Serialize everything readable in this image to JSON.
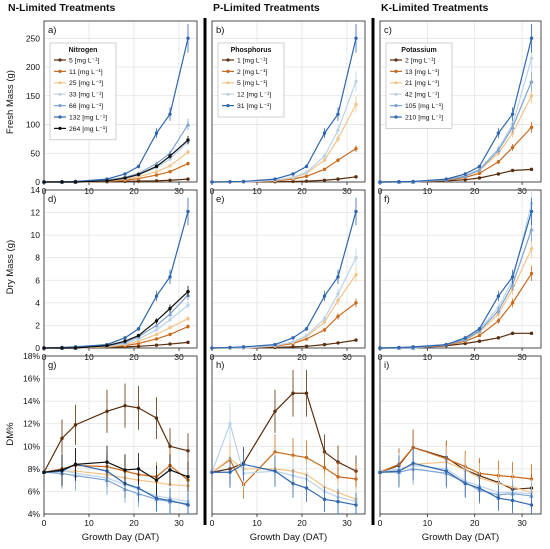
{
  "columns": [
    "N-Limited Treatments",
    "P-Limited Treatments",
    "K-Limited Treatments"
  ],
  "panel_labels": [
    "a)",
    "b)",
    "c)",
    "d)",
    "e)",
    "f)",
    "g)",
    "h)",
    "i)"
  ],
  "row_ylabels": [
    "Fresh Mass (g)",
    "Dry Mass (g)",
    "DM%"
  ],
  "xlabel": "Growth Day (DAT)",
  "colors": [
    "#5a2d0c",
    "#c86a1e",
    "#f2c48a",
    "#bcd3ea",
    "#7ea3cf",
    "#2f66ad",
    "#111111"
  ],
  "chart_data": [
    {
      "type": "line",
      "panel": "a)",
      "column": "N-Limited Treatments",
      "ylabel": "Fresh Mass (g)",
      "xlabel": "",
      "ylim": [
        0,
        280
      ],
      "yticks": [
        0,
        50,
        100,
        150,
        200,
        250
      ],
      "xlim": [
        0,
        34
      ],
      "xticks": [
        0,
        10,
        20,
        30
      ],
      "legend_title": "Nitrogen",
      "legend_position": "top-left",
      "x": [
        0,
        4,
        7,
        14,
        18,
        21,
        25,
        28,
        32
      ],
      "series": [
        {
          "name": "5 [mg L⁻¹]",
          "values": [
            0,
            0,
            0,
            0.5,
            1,
            1.5,
            2,
            3,
            5
          ]
        },
        {
          "name": "11 [mg L⁻¹]",
          "values": [
            0,
            0,
            0,
            1,
            3,
            6,
            12,
            18,
            32
          ]
        },
        {
          "name": "25 [mg L⁻¹]",
          "values": [
            0,
            0,
            0,
            2,
            5,
            9,
            18,
            28,
            52
          ]
        },
        {
          "name": "33 [mg L⁻¹]",
          "values": [
            0,
            0,
            0,
            2,
            6,
            12,
            25,
            40,
            70
          ]
        },
        {
          "name": "66 [mg L⁻¹]",
          "values": [
            0,
            0,
            0,
            3,
            8,
            15,
            32,
            50,
            100
          ]
        },
        {
          "name": "132 [mg L⁻¹]",
          "values": [
            0,
            0.5,
            1,
            5,
            14,
            27,
            85,
            118,
            250
          ]
        },
        {
          "name": "264 [mg L⁻¹]",
          "values": [
            0,
            0,
            0,
            2,
            7,
            13,
            27,
            45,
            73
          ]
        }
      ]
    },
    {
      "type": "line",
      "panel": "b)",
      "column": "P-Limited Treatments",
      "ylabel": "",
      "xlabel": "",
      "ylim": [
        0,
        280
      ],
      "yticks": [
        0,
        50,
        100,
        150,
        200,
        250
      ],
      "xlim": [
        0,
        34
      ],
      "xticks": [
        0,
        10,
        20,
        30
      ],
      "legend_title": "Phosphorus",
      "legend_position": "top-left",
      "x": [
        0,
        4,
        7,
        14,
        18,
        21,
        25,
        28,
        32
      ],
      "series": [
        {
          "name": "1 [mg L⁻¹]",
          "values": [
            0,
            0,
            0,
            0.5,
            1,
            1.5,
            3,
            5,
            9
          ]
        },
        {
          "name": "2 [mg L⁻¹]",
          "values": [
            0,
            0,
            0,
            2,
            5,
            10,
            22,
            38,
            58
          ]
        },
        {
          "name": "5 [mg L⁻¹]",
          "values": [
            0,
            0,
            0,
            3,
            7,
            15,
            38,
            75,
            135
          ]
        },
        {
          "name": "12 [mg L⁻¹]",
          "values": [
            0,
            0,
            0,
            3,
            8,
            17,
            45,
            90,
            175
          ]
        },
        {
          "name": "31 [mg L⁻¹]",
          "values": [
            0,
            0.5,
            1,
            5,
            14,
            27,
            85,
            118,
            250
          ]
        }
      ]
    },
    {
      "type": "line",
      "panel": "c)",
      "column": "K-Limited Treatments",
      "ylabel": "",
      "xlabel": "",
      "ylim": [
        0,
        280
      ],
      "yticks": [
        0,
        50,
        100,
        150,
        200,
        250
      ],
      "xlim": [
        0,
        34
      ],
      "xticks": [
        0,
        10,
        20,
        30
      ],
      "legend_title": "Potassium",
      "legend_position": "top-left",
      "x": [
        0,
        4,
        7,
        14,
        18,
        21,
        25,
        28,
        32
      ],
      "series": [
        {
          "name": "2 [mg L⁻¹]",
          "values": [
            0,
            0,
            0,
            2,
            4,
            7,
            14,
            20,
            22
          ]
        },
        {
          "name": "13 [mg L⁻¹]",
          "values": [
            0,
            0,
            0,
            3,
            8,
            15,
            35,
            60,
            95
          ]
        },
        {
          "name": "21 [mg L⁻¹]",
          "values": [
            0,
            0,
            0,
            4,
            10,
            20,
            50,
            85,
            150
          ]
        },
        {
          "name": "42 [mg L⁻¹]",
          "values": [
            0,
            0,
            0,
            4,
            11,
            22,
            58,
            100,
            215
          ]
        },
        {
          "name": "105 [mg L⁻¹]",
          "values": [
            0,
            0,
            0,
            4,
            10,
            21,
            55,
            95,
            175
          ]
        },
        {
          "name": "210 [mg L⁻¹]",
          "values": [
            0,
            0.5,
            1,
            5,
            14,
            27,
            85,
            118,
            250
          ]
        }
      ]
    },
    {
      "type": "line",
      "panel": "d)",
      "column": "N-Limited Treatments",
      "ylabel": "Dry Mass (g)",
      "xlabel": "",
      "ylim": [
        0,
        14
      ],
      "yticks": [
        0,
        2,
        4,
        6,
        8,
        10,
        12,
        14
      ],
      "xlim": [
        0,
        34
      ],
      "xticks": [
        0,
        10,
        20,
        30
      ],
      "x": [
        0,
        4,
        7,
        14,
        18,
        21,
        25,
        28,
        32
      ],
      "series": [
        {
          "values": [
            0,
            0,
            0,
            0.05,
            0.1,
            0.15,
            0.25,
            0.35,
            0.5
          ]
        },
        {
          "values": [
            0,
            0,
            0,
            0.1,
            0.2,
            0.4,
            0.8,
            1.2,
            1.9
          ]
        },
        {
          "values": [
            0,
            0,
            0,
            0.1,
            0.3,
            0.6,
            1.2,
            1.8,
            2.6
          ]
        },
        {
          "values": [
            0,
            0,
            0,
            0.15,
            0.4,
            0.8,
            1.6,
            2.5,
            3.8
          ]
        },
        {
          "values": [
            0,
            0,
            0,
            0.2,
            0.5,
            1.0,
            2.0,
            3.0,
            4.7
          ]
        },
        {
          "values": [
            0,
            0.05,
            0.1,
            0.3,
            0.9,
            1.7,
            4.6,
            6.3,
            12.1
          ]
        },
        {
          "values": [
            0,
            0,
            0,
            0.2,
            0.6,
            1.1,
            2.4,
            3.5,
            5.0
          ]
        }
      ]
    },
    {
      "type": "line",
      "panel": "e)",
      "column": "P-Limited Treatments",
      "ylabel": "",
      "xlabel": "",
      "ylim": [
        0,
        14
      ],
      "yticks": [
        0,
        2,
        4,
        6,
        8,
        10,
        12,
        14
      ],
      "xlim": [
        0,
        34
      ],
      "xticks": [
        0,
        10,
        20,
        30
      ],
      "x": [
        0,
        4,
        7,
        14,
        18,
        21,
        25,
        28,
        32
      ],
      "series": [
        {
          "values": [
            0,
            0,
            0,
            0.05,
            0.1,
            0.15,
            0.3,
            0.45,
            0.7
          ]
        },
        {
          "values": [
            0,
            0,
            0,
            0.15,
            0.4,
            0.8,
            1.6,
            2.8,
            4.0
          ]
        },
        {
          "values": [
            0,
            0,
            0,
            0.2,
            0.5,
            1.0,
            2.3,
            4.2,
            6.5
          ]
        },
        {
          "values": [
            0,
            0,
            0,
            0.2,
            0.55,
            1.1,
            2.6,
            4.8,
            8.0
          ]
        },
        {
          "values": [
            0,
            0.05,
            0.1,
            0.3,
            0.9,
            1.7,
            4.6,
            6.3,
            12.1
          ]
        }
      ]
    },
    {
      "type": "line",
      "panel": "f)",
      "column": "K-Limited Treatments",
      "ylabel": "",
      "xlabel": "",
      "ylim": [
        0,
        14
      ],
      "yticks": [
        0,
        2,
        4,
        6,
        8,
        10,
        12,
        14
      ],
      "xlim": [
        0,
        34
      ],
      "xticks": [
        0,
        10,
        20,
        30
      ],
      "x": [
        0,
        4,
        7,
        14,
        18,
        21,
        25,
        28,
        32
      ],
      "series": [
        {
          "values": [
            0,
            0,
            0,
            0.2,
            0.4,
            0.6,
            0.9,
            1.3,
            1.3
          ]
        },
        {
          "values": [
            0,
            0,
            0,
            0.25,
            0.6,
            1.1,
            2.4,
            4.0,
            6.6
          ]
        },
        {
          "values": [
            0,
            0,
            0,
            0.3,
            0.7,
            1.4,
            3.0,
            5.2,
            8.8
          ]
        },
        {
          "values": [
            0,
            0,
            0,
            0.3,
            0.8,
            1.6,
            3.6,
            6.0,
            12.8
          ]
        },
        {
          "values": [
            0,
            0,
            0,
            0.3,
            0.75,
            1.5,
            3.3,
            5.6,
            10.5
          ]
        },
        {
          "values": [
            0,
            0.05,
            0.1,
            0.3,
            0.9,
            1.7,
            4.6,
            6.3,
            12.1
          ]
        }
      ]
    },
    {
      "type": "line",
      "panel": "g)",
      "column": "N-Limited Treatments",
      "ylabel": "DM%",
      "xlabel": "Growth Day (DAT)",
      "ylim": [
        4,
        18
      ],
      "yticks": [
        4,
        6,
        8,
        10,
        12,
        14,
        16,
        18
      ],
      "ytick_suffix": "%",
      "xlim": [
        0,
        34
      ],
      "xticks": [
        0,
        10,
        20,
        30
      ],
      "x": [
        0,
        4,
        7,
        14,
        18,
        21,
        25,
        28,
        32
      ],
      "series": [
        {
          "values": [
            7.7,
            10.7,
            11.9,
            13.1,
            13.6,
            13.4,
            12.5,
            10.0,
            9.6
          ]
        },
        {
          "values": [
            7.7,
            8.0,
            8.3,
            8.2,
            7.8,
            7.5,
            7.3,
            8.3,
            7.0
          ]
        },
        {
          "values": [
            7.7,
            7.8,
            7.8,
            7.5,
            7.2,
            7.0,
            6.8,
            6.6,
            6.5
          ]
        },
        {
          "values": [
            7.7,
            7.9,
            7.6,
            7.2,
            6.6,
            6.2,
            5.6,
            5.4,
            5.1
          ]
        },
        {
          "values": [
            7.7,
            7.6,
            7.4,
            7.0,
            6.2,
            5.8,
            5.3,
            5.1,
            4.9
          ]
        },
        {
          "values": [
            7.7,
            7.8,
            8.4,
            7.8,
            6.7,
            6.3,
            5.4,
            5.2,
            4.8
          ]
        },
        {
          "values": [
            7.7,
            7.9,
            8.4,
            8.6,
            7.9,
            8.0,
            7.0,
            7.9,
            7.3
          ]
        }
      ]
    },
    {
      "type": "line",
      "panel": "h)",
      "column": "P-Limited Treatments",
      "ylabel": "",
      "xlabel": "Growth Day (DAT)",
      "ylim": [
        4,
        18
      ],
      "yticks": [
        4,
        6,
        8,
        10,
        12,
        14,
        16,
        18
      ],
      "ytick_suffix": "%",
      "xlim": [
        0,
        34
      ],
      "xticks": [
        0,
        10,
        20,
        30
      ],
      "x": [
        0,
        4,
        7,
        14,
        18,
        21,
        25,
        28,
        32
      ],
      "series": [
        {
          "values": [
            7.7,
            8.0,
            8.5,
            13.1,
            14.7,
            14.7,
            9.5,
            8.6,
            7.8
          ]
        },
        {
          "values": [
            7.7,
            8.8,
            6.6,
            9.5,
            9.2,
            9.0,
            8.1,
            7.3,
            7.1
          ]
        },
        {
          "values": [
            7.7,
            8.9,
            8.0,
            8.0,
            7.8,
            7.5,
            6.4,
            5.9,
            5.3
          ]
        },
        {
          "values": [
            7.7,
            12.0,
            7.6,
            7.8,
            7.4,
            7.1,
            6.0,
            5.5,
            5.1
          ]
        },
        {
          "values": [
            7.7,
            7.7,
            8.4,
            7.8,
            6.7,
            6.3,
            5.3,
            5.1,
            4.8
          ]
        }
      ]
    },
    {
      "type": "line",
      "panel": "i)",
      "column": "K-Limited Treatments",
      "ylabel": "",
      "xlabel": "Growth Day (DAT)",
      "ylim": [
        4,
        18
      ],
      "yticks": [
        4,
        6,
        8,
        10,
        12,
        14,
        16,
        18
      ],
      "ytick_suffix": "%",
      "xlim": [
        0,
        34
      ],
      "xticks": [
        0,
        10,
        20,
        30
      ],
      "x": [
        0,
        4,
        7,
        14,
        18,
        21,
        25,
        28,
        32
      ],
      "series": [
        {
          "values": [
            7.7,
            8.3,
            9.9,
            9.0,
            7.9,
            7.4,
            6.8,
            6.2,
            6.3
          ]
        },
        {
          "values": [
            7.7,
            8.4,
            9.9,
            8.9,
            8.2,
            7.6,
            7.4,
            7.3,
            7.1
          ]
        },
        {
          "values": [
            7.7,
            7.8,
            8.4,
            8.6,
            7.9,
            7.2,
            6.7,
            6.4,
            5.9
          ]
        },
        {
          "values": [
            7.7,
            8.0,
            8.3,
            8.0,
            6.9,
            6.5,
            5.9,
            5.9,
            5.8
          ]
        },
        {
          "values": [
            7.7,
            7.7,
            8.0,
            7.6,
            6.8,
            6.1,
            5.7,
            5.8,
            5.6
          ]
        },
        {
          "values": [
            7.7,
            7.8,
            8.5,
            7.8,
            6.7,
            6.3,
            5.4,
            5.2,
            4.8
          ]
        }
      ]
    }
  ]
}
